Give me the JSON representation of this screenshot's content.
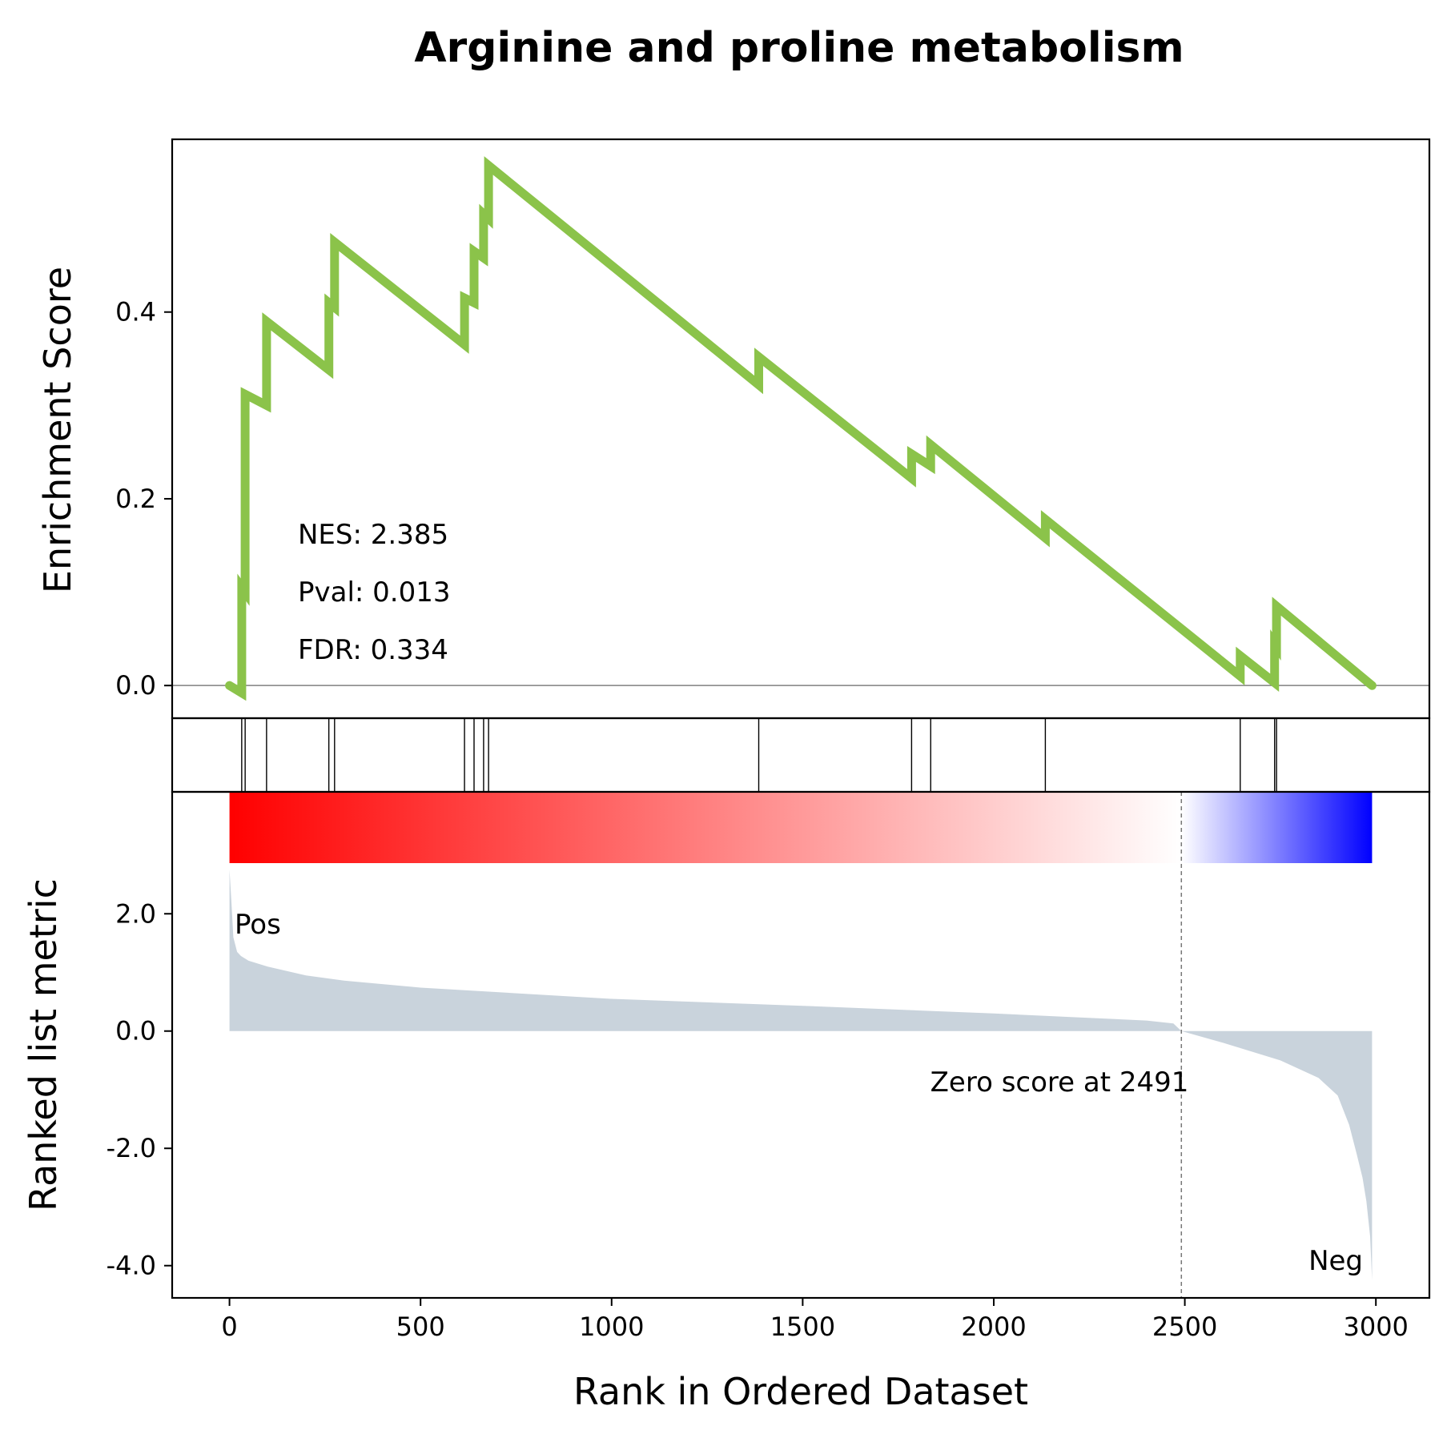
{
  "chart_data": {
    "type": "line",
    "title": "Arginine and proline metabolism",
    "xlabel": "Rank in Ordered Dataset",
    "xlim": [
      -150,
      3140
    ],
    "x_ticks": [
      0,
      500,
      1000,
      1500,
      2000,
      2500,
      3000
    ],
    "x_tick_labels": [
      "0",
      "500",
      "1000",
      "1500",
      "2000",
      "2500",
      "3000"
    ],
    "enrichment": {
      "ylabel": "Enrichment Score",
      "ylim": [
        -0.035,
        0.585
      ],
      "y_ticks": [
        0.0,
        0.2,
        0.4
      ],
      "y_tick_labels": [
        "0.0",
        "0.2",
        "0.4"
      ],
      "color": "#8bc34a",
      "zero_line_color": "#808080",
      "stats": {
        "nes": "NES: 2.385",
        "pval": "Pval: 0.013",
        "fdr": "FDR: 0.334"
      },
      "x": [
        0,
        32,
        32,
        41,
        41,
        97,
        97,
        260,
        260,
        275,
        275,
        615,
        615,
        640,
        640,
        665,
        665,
        678,
        678,
        1385,
        1385,
        1785,
        1785,
        1835,
        1835,
        2135,
        2135,
        2645,
        2645,
        2735,
        2735,
        2740,
        2740,
        2990
      ],
      "y": [
        0.0,
        -0.008,
        0.105,
        0.1,
        0.312,
        0.3,
        0.39,
        0.338,
        0.41,
        0.405,
        0.475,
        0.365,
        0.415,
        0.41,
        0.465,
        0.458,
        0.505,
        0.5,
        0.557,
        0.322,
        0.352,
        0.222,
        0.248,
        0.235,
        0.258,
        0.158,
        0.178,
        0.01,
        0.032,
        0.003,
        0.045,
        0.042,
        0.085,
        0.0
      ]
    },
    "hits": {
      "positions": [
        32,
        41,
        97,
        260,
        275,
        615,
        640,
        665,
        678,
        1385,
        1785,
        1835,
        2135,
        2645,
        2735,
        2740
      ],
      "color": "#000000"
    },
    "colorbar": {
      "pos_color": "#ff0000",
      "zero_color": "#ffffff",
      "neg_color": "#0000ff",
      "zero_fraction": 0.833
    },
    "ranked_metric": {
      "ylabel": "Ranked list metric",
      "ylim": [
        -4.55,
        2.85
      ],
      "y_ticks": [
        2.0,
        0.0,
        -2.0,
        -4.0
      ],
      "y_tick_labels": [
        "2.0",
        "0.0",
        "-2.0",
        "-4.0"
      ],
      "fill_color": "#c9d3dc",
      "pos_label": "Pos",
      "pos_label_color": "#ff0000",
      "neg_label": "Neg",
      "neg_label_color": "#0000ff",
      "zero_cross_rank": 2491,
      "zero_cross_text": "Zero score at 2491",
      "x": [
        0,
        5,
        10,
        20,
        30,
        50,
        100,
        200,
        300,
        500,
        1000,
        1500,
        2000,
        2400,
        2470,
        2491,
        2600,
        2750,
        2850,
        2900,
        2930,
        2950,
        2965,
        2975,
        2985,
        2990
      ],
      "y": [
        2.75,
        2.2,
        1.6,
        1.35,
        1.28,
        1.2,
        1.1,
        0.95,
        0.86,
        0.74,
        0.55,
        0.43,
        0.3,
        0.18,
        0.13,
        0.0,
        -0.2,
        -0.5,
        -0.8,
        -1.1,
        -1.6,
        -2.1,
        -2.5,
        -2.9,
        -3.5,
        -4.25
      ]
    }
  }
}
